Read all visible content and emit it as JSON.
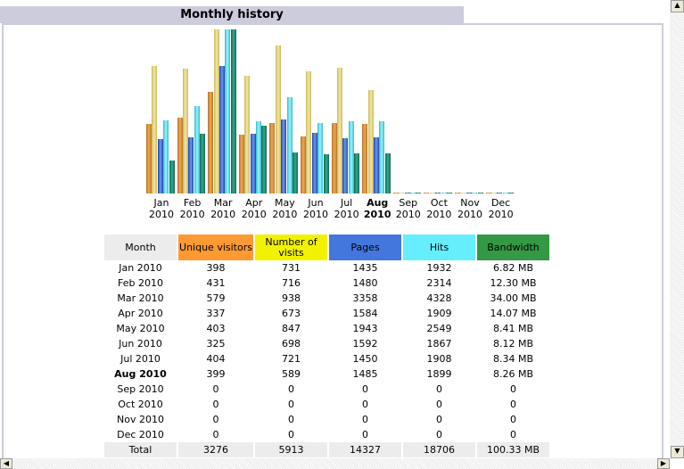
{
  "title": "Monthly history",
  "colors": {
    "unique": "#ff9933",
    "visits": "#f2f200",
    "pages": "#4477dd",
    "hits": "#66eeff",
    "bandwidth": "#339944"
  },
  "chart_data": {
    "type": "bar",
    "title": "Monthly history",
    "categories": [
      "Jan 2010",
      "Feb 2010",
      "Mar 2010",
      "Apr 2010",
      "May 2010",
      "Jun 2010",
      "Jul 2010",
      "Aug 2010",
      "Sep 2010",
      "Oct 2010",
      "Nov 2010",
      "Dec 2010"
    ],
    "month_labels": [
      [
        "Jan",
        "2010"
      ],
      [
        "Feb",
        "2010"
      ],
      [
        "Mar",
        "2010"
      ],
      [
        "Apr",
        "2010"
      ],
      [
        "May",
        "2010"
      ],
      [
        "Jun",
        "2010"
      ],
      [
        "Jul",
        "2010"
      ],
      [
        "Aug",
        "2010"
      ],
      [
        "Sep",
        "2010"
      ],
      [
        "Oct",
        "2010"
      ],
      [
        "Nov",
        "2010"
      ],
      [
        "Dec",
        "2010"
      ]
    ],
    "current_month_index": 7,
    "series": [
      {
        "name": "Unique visitors",
        "values": [
          398,
          431,
          579,
          337,
          403,
          325,
          404,
          399,
          0,
          0,
          0,
          0
        ]
      },
      {
        "name": "Number of visits",
        "values": [
          731,
          716,
          938,
          673,
          847,
          698,
          721,
          589,
          0,
          0,
          0,
          0
        ]
      },
      {
        "name": "Pages",
        "values": [
          1435,
          1480,
          3358,
          1584,
          1943,
          1592,
          1450,
          1485,
          0,
          0,
          0,
          0
        ]
      },
      {
        "name": "Hits",
        "values": [
          1932,
          2314,
          4328,
          1909,
          2549,
          1867,
          1908,
          1899,
          0,
          0,
          0,
          0
        ]
      },
      {
        "name": "Bandwidth (MB)",
        "values": [
          6.82,
          12.3,
          34.0,
          14.07,
          8.41,
          8.12,
          8.34,
          8.26,
          0,
          0,
          0,
          0
        ]
      }
    ]
  },
  "table": {
    "headers": [
      "Month",
      "Unique visitors",
      "Number of visits",
      "Pages",
      "Hits",
      "Bandwidth"
    ],
    "rows": [
      [
        "Jan 2010",
        "398",
        "731",
        "1435",
        "1932",
        "6.82 MB"
      ],
      [
        "Feb 2010",
        "431",
        "716",
        "1480",
        "2314",
        "12.30 MB"
      ],
      [
        "Mar 2010",
        "579",
        "938",
        "3358",
        "4328",
        "34.00 MB"
      ],
      [
        "Apr 2010",
        "337",
        "673",
        "1584",
        "1909",
        "14.07 MB"
      ],
      [
        "May 2010",
        "403",
        "847",
        "1943",
        "2549",
        "8.41 MB"
      ],
      [
        "Jun 2010",
        "325",
        "698",
        "1592",
        "1867",
        "8.12 MB"
      ],
      [
        "Jul 2010",
        "404",
        "721",
        "1450",
        "1908",
        "8.34 MB"
      ],
      [
        "Aug 2010",
        "399",
        "589",
        "1485",
        "1899",
        "8.26 MB"
      ],
      [
        "Sep 2010",
        "0",
        "0",
        "0",
        "0",
        "0"
      ],
      [
        "Oct 2010",
        "0",
        "0",
        "0",
        "0",
        "0"
      ],
      [
        "Nov 2010",
        "0",
        "0",
        "0",
        "0",
        "0"
      ],
      [
        "Dec 2010",
        "0",
        "0",
        "0",
        "0",
        "0"
      ]
    ],
    "total": [
      "Total",
      "3276",
      "5913",
      "14327",
      "18706",
      "100.33 MB"
    ]
  }
}
